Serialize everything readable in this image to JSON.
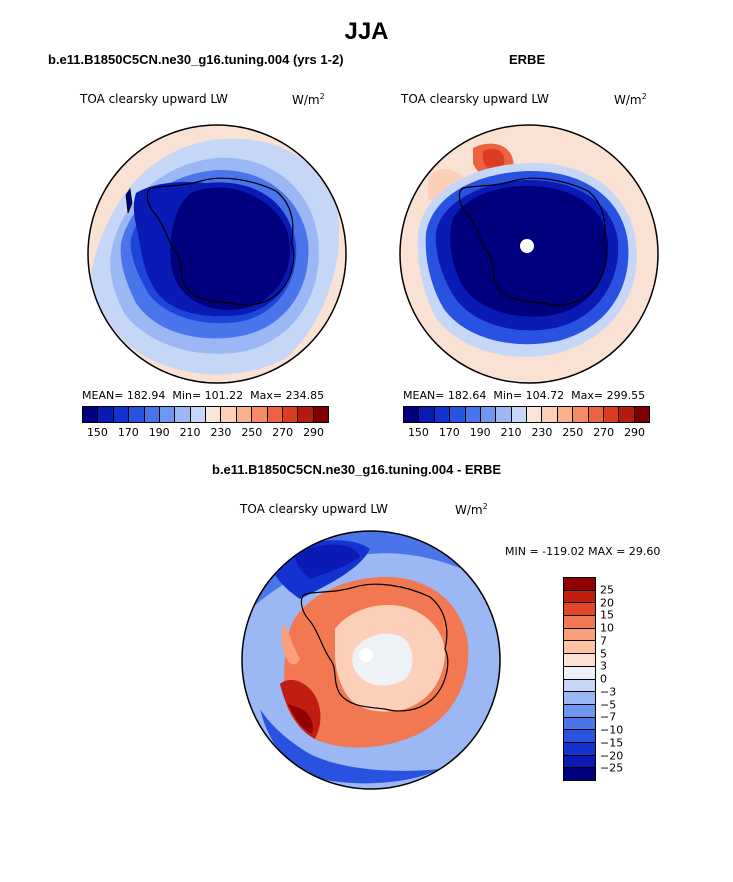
{
  "title": "JJA",
  "colors": {
    "scale_abs": [
      "#00007f",
      "#0a1ab4",
      "#1432d2",
      "#2a52e0",
      "#4a74ea",
      "#6f96f0",
      "#9bb8f4",
      "#c5d6f6",
      "#f7e6dc",
      "#fcd0b8",
      "#f8b08e",
      "#f48a66",
      "#ee6140",
      "#dc3c20",
      "#b61a0e",
      "#7f0000"
    ],
    "scale_diff": [
      "#00007f",
      "#0a1ab4",
      "#1432d2",
      "#2a52e0",
      "#4a74ea",
      "#6f96f0",
      "#9bb8f4",
      "#c5d6f6",
      "#eef1f6",
      "#fbe1d2",
      "#fcc3a4",
      "#f8a07c",
      "#f27852",
      "#e2462a",
      "#c01e12",
      "#900000"
    ],
    "land_outline": "#000000"
  },
  "panel_left": {
    "title": "b.e11.B1850C5CN.ne30_g16.tuning.004 (yrs 1-2)",
    "variable": "TOA clearsky upward LW",
    "units": "W/m",
    "units_exp": "2",
    "stats": {
      "mean_label": "MEAN=",
      "mean": "182.94",
      "min_label": "Min=",
      "min": "101.22",
      "max_label": "Max=",
      "max": "234.85"
    },
    "colorbar_ticks": [
      "150",
      "170",
      "190",
      "210",
      "230",
      "250",
      "270",
      "290"
    ]
  },
  "panel_right": {
    "title": "ERBE",
    "variable": "TOA clearsky upward LW",
    "units": "W/m",
    "units_exp": "2",
    "stats": {
      "mean_label": "MEAN=",
      "mean": "182.64",
      "min_label": "Min=",
      "min": "104.72",
      "max_label": "Max=",
      "max": "299.55"
    },
    "colorbar_ticks": [
      "150",
      "170",
      "190",
      "210",
      "230",
      "250",
      "270",
      "290"
    ]
  },
  "panel_diff": {
    "title": "b.e11.B1850C5CN.ne30_g16.tuning.004 - ERBE",
    "variable": "TOA clearsky upward LW",
    "units": "W/m",
    "units_exp": "2",
    "minmax_text": "MIN = -119.02 MAX =  29.60",
    "colorbar_ticks": [
      "25",
      "20",
      "15",
      "10",
      "7",
      "5",
      "3",
      "0",
      "-3",
      "-5",
      "-7",
      "-10",
      "-15",
      "-20",
      "-25"
    ]
  }
}
